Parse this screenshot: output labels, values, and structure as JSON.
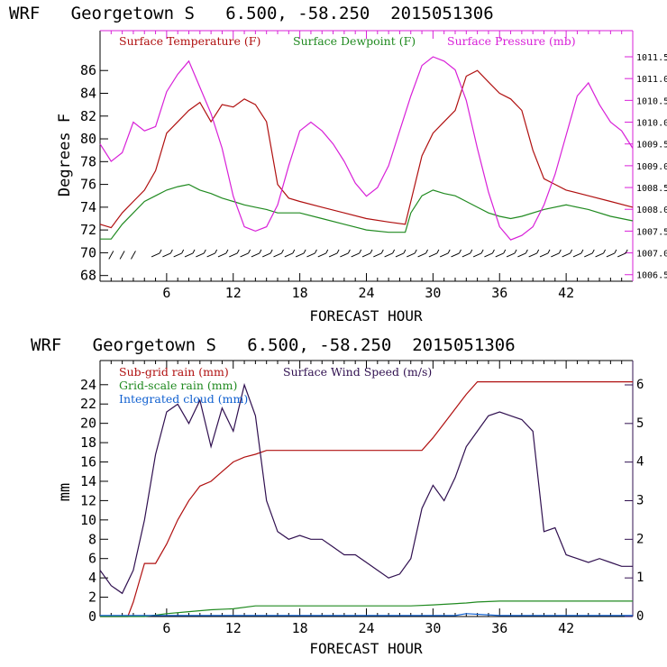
{
  "colors": {
    "temperature": "#b01010",
    "dewpoint": "#208a20",
    "pressure": "#d820d8",
    "subgrid": "#b01010",
    "gridscale": "#208a20",
    "cloud": "#1060d0",
    "wind": "#301050",
    "axis": "#000000"
  },
  "chart_data": [
    {
      "type": "line",
      "title": "WRF   Georgetown S   6.500, -58.250  2015051306",
      "xlabel": "FORECAST HOUR",
      "ylabel": "Degrees F",
      "xlim": [
        0,
        48
      ],
      "xticks": [
        6,
        12,
        18,
        24,
        30,
        36,
        42
      ],
      "ylim": [
        67.5,
        89.5
      ],
      "yticks": [
        68,
        70,
        72,
        74,
        76,
        78,
        80,
        82,
        84,
        86
      ],
      "y2lim": [
        1006.35,
        1012.1
      ],
      "y2ticks": [
        "1006.5",
        "1007.0",
        "1007.5",
        "1008.0",
        "1008.5",
        "1009.0",
        "1009.5",
        "1010.0",
        "1010.5",
        "1011.0",
        "1011.5"
      ],
      "legend_placement": "top",
      "series": [
        {
          "name": "Surface Temperature (F)",
          "axis": "left",
          "x": [
            0,
            1,
            2,
            3,
            4,
            5,
            6,
            7,
            8,
            9,
            10,
            11,
            12,
            13,
            14,
            15,
            16,
            17,
            18,
            20,
            22,
            24,
            26,
            27.5,
            28,
            29,
            30,
            31,
            32,
            33,
            34,
            35,
            36,
            37,
            38,
            39,
            40,
            41,
            42,
            44,
            46,
            48
          ],
          "y": [
            72.5,
            72.2,
            73.5,
            74.5,
            75.5,
            77.2,
            80.5,
            81.5,
            82.5,
            83.2,
            81.5,
            83,
            82.8,
            83.5,
            83,
            81.5,
            76,
            74.8,
            74.5,
            74,
            73.5,
            73,
            72.7,
            72.5,
            74.5,
            78.5,
            80.5,
            81.5,
            82.5,
            85.5,
            86,
            85,
            84,
            83.5,
            82.5,
            79,
            76.5,
            76,
            75.5,
            75,
            74.5,
            74
          ]
        },
        {
          "name": "Surface Dewpoint (F)",
          "axis": "left",
          "x": [
            0,
            1,
            2,
            3,
            4,
            5,
            6,
            7,
            8,
            9,
            10,
            11,
            12,
            13,
            14,
            15,
            16,
            17,
            18,
            20,
            22,
            24,
            26,
            27.5,
            28,
            29,
            30,
            31,
            32,
            33,
            34,
            35,
            36,
            37,
            38,
            40,
            42,
            44,
            46,
            48
          ],
          "y": [
            71.2,
            71.2,
            72.5,
            73.5,
            74.5,
            75,
            75.5,
            75.8,
            76,
            75.5,
            75.2,
            74.8,
            74.5,
            74.2,
            74,
            73.8,
            73.5,
            73.5,
            73.5,
            73,
            72.5,
            72,
            71.8,
            71.8,
            73.5,
            75,
            75.5,
            75.2,
            75,
            74.5,
            74,
            73.5,
            73.2,
            73,
            73.2,
            73.8,
            74.2,
            73.8,
            73.2,
            72.8
          ]
        },
        {
          "name": "Surface Pressure (mb)",
          "axis": "right",
          "x": [
            0,
            1,
            2,
            3,
            4,
            5,
            6,
            7,
            8,
            9,
            10,
            11,
            12,
            13,
            14,
            15,
            16,
            17,
            18,
            19,
            20,
            21,
            22,
            23,
            24,
            25,
            26,
            27,
            28,
            29,
            30,
            31,
            32,
            33,
            34,
            35,
            36,
            37,
            38,
            39,
            40,
            41,
            42,
            43,
            44,
            45,
            46,
            47,
            48
          ],
          "y": [
            1009.5,
            1009.1,
            1009.3,
            1010.0,
            1009.8,
            1009.9,
            1010.7,
            1011.1,
            1011.4,
            1010.8,
            1010.2,
            1009.4,
            1008.3,
            1007.6,
            1007.5,
            1007.6,
            1008.1,
            1009.0,
            1009.8,
            1010.0,
            1009.8,
            1009.5,
            1009.1,
            1008.6,
            1008.3,
            1008.5,
            1009.0,
            1009.8,
            1010.6,
            1011.3,
            1011.5,
            1011.4,
            1011.2,
            1010.5,
            1009.4,
            1008.4,
            1007.6,
            1007.3,
            1007.4,
            1007.6,
            1008.1,
            1008.8,
            1009.7,
            1010.6,
            1010.9,
            1010.4,
            1010.0,
            1009.8,
            1009.4
          ]
        }
      ],
      "wind_barb_hours": [
        1,
        2,
        3,
        5,
        6,
        7,
        8,
        9,
        10,
        11,
        12,
        13,
        14,
        15,
        16,
        17,
        18,
        19,
        20,
        21,
        22,
        23,
        24,
        25,
        26,
        27,
        28,
        29,
        30,
        31,
        32,
        33,
        34,
        35,
        36,
        37,
        38,
        39,
        40,
        41,
        42,
        43,
        44,
        45,
        46,
        47
      ]
    },
    {
      "type": "line",
      "title": "WRF   Georgetown S   6.500, -58.250  2015051306",
      "xlabel": "FORECAST HOUR",
      "ylabel": "mm",
      "xlim": [
        0,
        48
      ],
      "xticks": [
        6,
        12,
        18,
        24,
        30,
        36,
        42
      ],
      "ylim": [
        0,
        26.5
      ],
      "yticks": [
        0,
        2,
        4,
        6,
        8,
        10,
        12,
        14,
        16,
        18,
        20,
        22,
        24
      ],
      "y2lim": [
        0,
        6.63
      ],
      "y2ticks": [
        "0",
        "1",
        "2",
        "3",
        "4",
        "5",
        "6"
      ],
      "legend_placement": "top-left",
      "series": [
        {
          "name": "Sub-grid rain (mm)",
          "axis": "left",
          "x": [
            0,
            2.5,
            3,
            3.5,
            4,
            5,
            6,
            7,
            8,
            9,
            10,
            11,
            12,
            13,
            14,
            15,
            20,
            25,
            29,
            30,
            31,
            32,
            33,
            34,
            36,
            40,
            44,
            48
          ],
          "y": [
            0,
            0,
            1.5,
            3.5,
            5.5,
            5.5,
            7.5,
            10,
            12,
            13.5,
            14,
            15,
            16,
            16.5,
            16.8,
            17.2,
            17.2,
            17.2,
            17.2,
            18.5,
            20,
            21.5,
            23,
            24.3,
            24.3,
            24.3,
            24.3,
            24.3
          ]
        },
        {
          "name": "Grid-scale rain (mm)",
          "axis": "left",
          "x": [
            0,
            4,
            6,
            8,
            10,
            12,
            14,
            16,
            20,
            24,
            28,
            30,
            33,
            34,
            36,
            40,
            44,
            48
          ],
          "y": [
            0,
            0,
            0.3,
            0.5,
            0.7,
            0.8,
            1.1,
            1.1,
            1.1,
            1.1,
            1.1,
            1.2,
            1.4,
            1.5,
            1.6,
            1.6,
            1.6,
            1.6
          ]
        },
        {
          "name": "Integrated cloud (mm)",
          "axis": "left",
          "x": [
            0,
            12,
            24,
            32,
            33,
            36,
            40,
            48
          ],
          "y": [
            0.1,
            0.1,
            0.1,
            0.1,
            0.3,
            0.1,
            0.1,
            0.1
          ]
        },
        {
          "name": "Surface Wind Speed (m/s)",
          "axis": "right",
          "x": [
            0,
            1,
            2,
            3,
            4,
            5,
            6,
            7,
            8,
            9,
            10,
            11,
            12,
            13,
            14,
            15,
            16,
            17,
            18,
            19,
            20,
            21,
            22,
            23,
            24,
            25,
            26,
            27,
            28,
            29,
            30,
            31,
            32,
            33,
            34,
            35,
            36,
            37,
            38,
            39,
            40,
            41,
            42,
            43,
            44,
            45,
            46,
            47,
            48
          ],
          "y": [
            1.2,
            0.8,
            0.6,
            1.2,
            2.5,
            4.2,
            5.3,
            5.5,
            5.0,
            5.6,
            4.4,
            5.4,
            4.8,
            6.0,
            5.2,
            3.0,
            2.2,
            2.0,
            2.1,
            2.0,
            2.0,
            1.8,
            1.6,
            1.6,
            1.4,
            1.2,
            1.0,
            1.1,
            1.5,
            2.8,
            3.4,
            3.0,
            3.6,
            4.4,
            4.8,
            5.2,
            5.3,
            5.2,
            5.1,
            4.8,
            2.2,
            2.3,
            1.6,
            1.5,
            1.4,
            1.5,
            1.4,
            1.3,
            1.3
          ]
        }
      ]
    }
  ]
}
